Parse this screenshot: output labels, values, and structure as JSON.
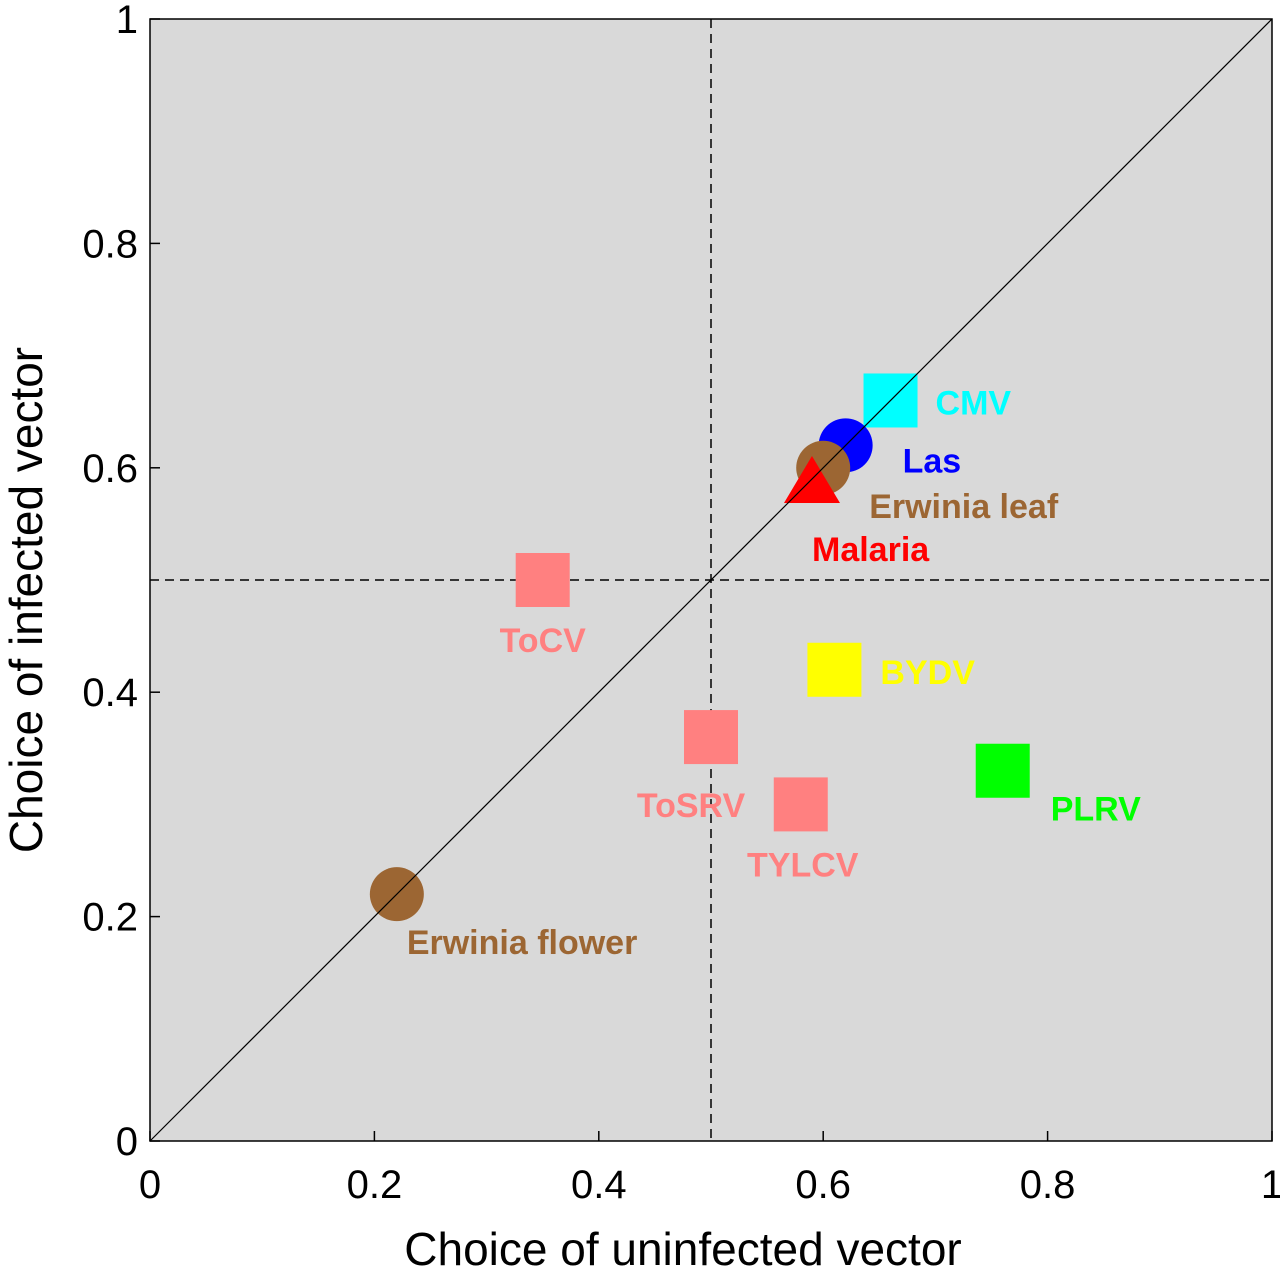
{
  "chart_data": {
    "type": "scatter",
    "xlabel": "Choice of uninfected vector",
    "ylabel": "Choice of infected vector",
    "xlim": [
      0,
      1
    ],
    "ylim": [
      0,
      1
    ],
    "xticks": [
      "0",
      "0.2",
      "0.4",
      "0.6",
      "0.8",
      "1"
    ],
    "yticks": [
      "0",
      "0.2",
      "0.4",
      "0.6",
      "0.8",
      "1"
    ],
    "grid": false,
    "background": "#d9d9d9",
    "reference_lines": {
      "diagonal": "y = x",
      "vertical_dashed": 0.5,
      "horizontal_dashed": 0.5
    },
    "points": [
      {
        "label": "CMV",
        "x": 0.66,
        "y": 0.66,
        "marker": "square",
        "color": "#00ffff"
      },
      {
        "label": "Las",
        "x": 0.62,
        "y": 0.62,
        "marker": "circle",
        "color": "#0000ff"
      },
      {
        "label": "Erwinia leaf",
        "x": 0.6,
        "y": 0.6,
        "marker": "circle",
        "color": "#9c6633"
      },
      {
        "label": "Malaria",
        "x": 0.59,
        "y": 0.59,
        "marker": "triangle",
        "color": "#ff0000"
      },
      {
        "label": "ToCV",
        "x": 0.35,
        "y": 0.5,
        "marker": "square",
        "color": "#ff8080"
      },
      {
        "label": "BYDV",
        "x": 0.61,
        "y": 0.42,
        "marker": "square",
        "color": "#ffff00"
      },
      {
        "label": "ToSRV",
        "x": 0.5,
        "y": 0.36,
        "marker": "square",
        "color": "#ff8080"
      },
      {
        "label": "TYLCV",
        "x": 0.58,
        "y": 0.3,
        "marker": "square",
        "color": "#ff8080"
      },
      {
        "label": "PLRV",
        "x": 0.76,
        "y": 0.33,
        "marker": "square",
        "color": "#00ff00"
      },
      {
        "label": "Erwinia flower",
        "x": 0.22,
        "y": 0.22,
        "marker": "circle",
        "color": "#9c6633"
      }
    ]
  }
}
